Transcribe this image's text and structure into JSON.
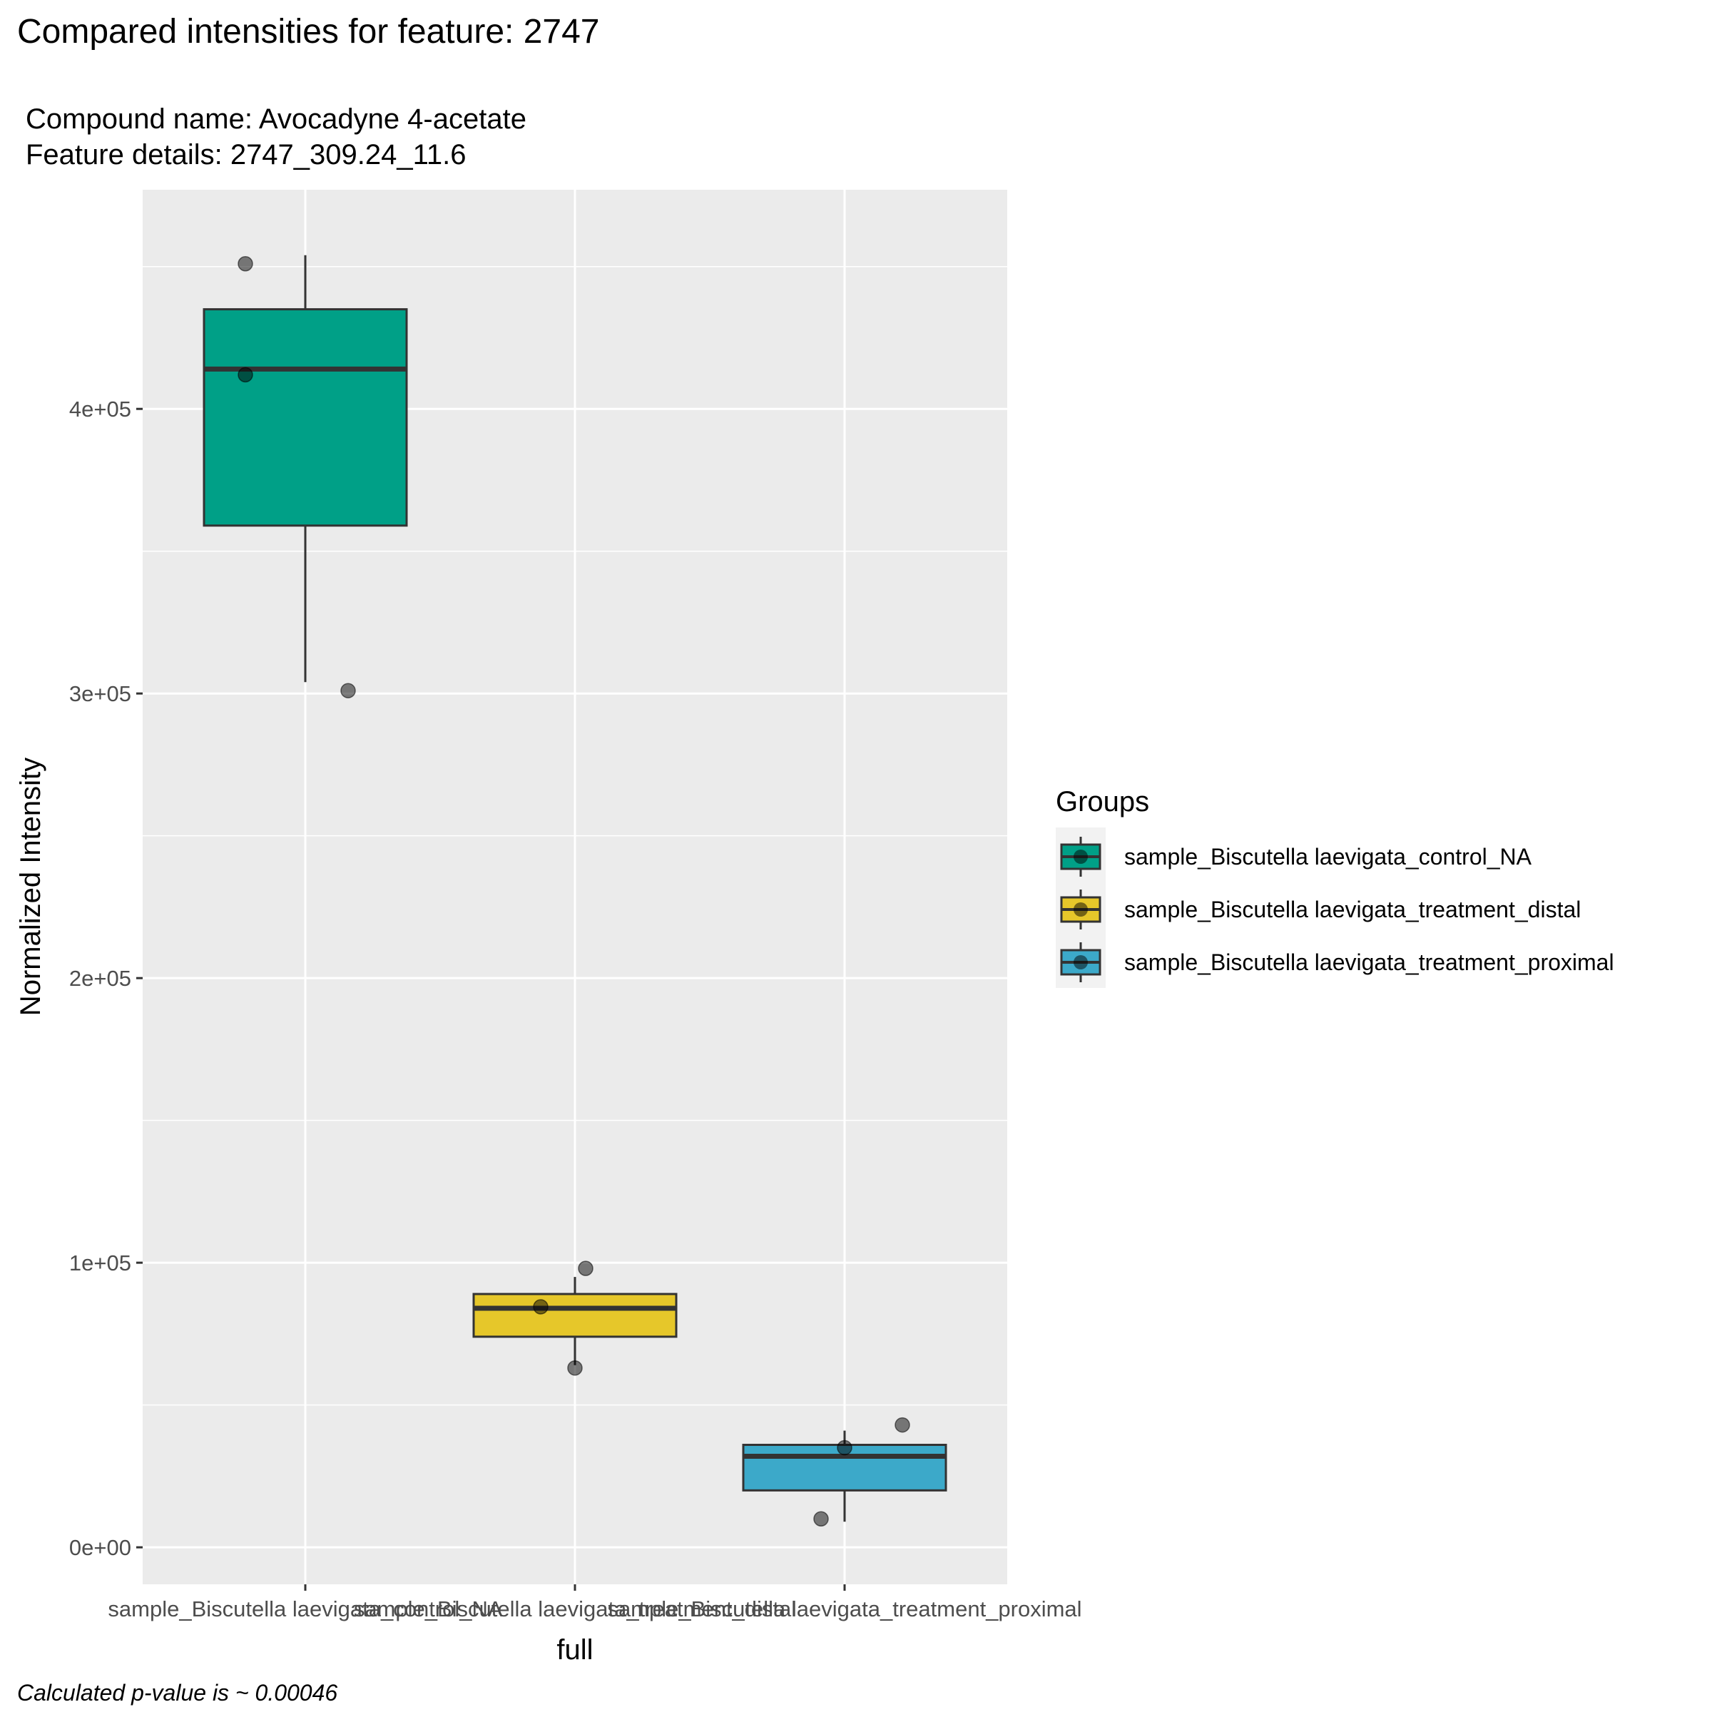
{
  "chart_data": {
    "type": "box",
    "title": "Compared intensities for feature: 2747",
    "subtitle_lines": [
      "Compound name:  Avocadyne 4-acetate",
      "Feature details:  2747_309.24_11.6"
    ],
    "xlabel": "full",
    "ylabel": "Normalized Intensity",
    "ylim": [
      -13000,
      477000
    ],
    "y_ticks": [
      0,
      100000,
      200000,
      300000,
      400000
    ],
    "y_tick_labels": [
      "0e+00",
      "1e+05",
      "2e+05",
      "3e+05",
      "4e+05"
    ],
    "grid": true,
    "legend_position": "right",
    "legend_title": "Groups",
    "caption": "Calculated p-value is ~  0.00046",
    "categories": [
      "sample_Biscutella laevigata_control_NA",
      "sample_Biscutella laevigata_treatment_distal",
      "sample_Biscutella laevigata_treatment_proximal"
    ],
    "series": [
      {
        "name": "sample_Biscutella laevigata_control_NA",
        "color": "#00a087",
        "q1": 359000,
        "median": 414000,
        "q3": 435000,
        "whisker_low": 304000,
        "whisker_high": 454000,
        "points": [
          451000,
          412000,
          301000
        ],
        "jitter": [
          -0.28,
          -0.28,
          0.2
        ]
      },
      {
        "name": "sample_Biscutella laevigata_treatment_distal",
        "color": "#e6c72a",
        "q1": 74000,
        "median": 84000,
        "q3": 89000,
        "whisker_low": 64000,
        "whisker_high": 95000,
        "points": [
          98000,
          84500,
          63000
        ],
        "jitter": [
          0.05,
          -0.16,
          0.0
        ]
      },
      {
        "name": "sample_Biscutella laevigata_treatment_proximal",
        "color": "#3ca9c9",
        "q1": 20000,
        "median": 32000,
        "q3": 36000,
        "whisker_low": 9000,
        "whisker_high": 41000,
        "points": [
          43000,
          35000,
          10000
        ],
        "jitter": [
          0.27,
          0.0,
          -0.11
        ]
      }
    ]
  }
}
